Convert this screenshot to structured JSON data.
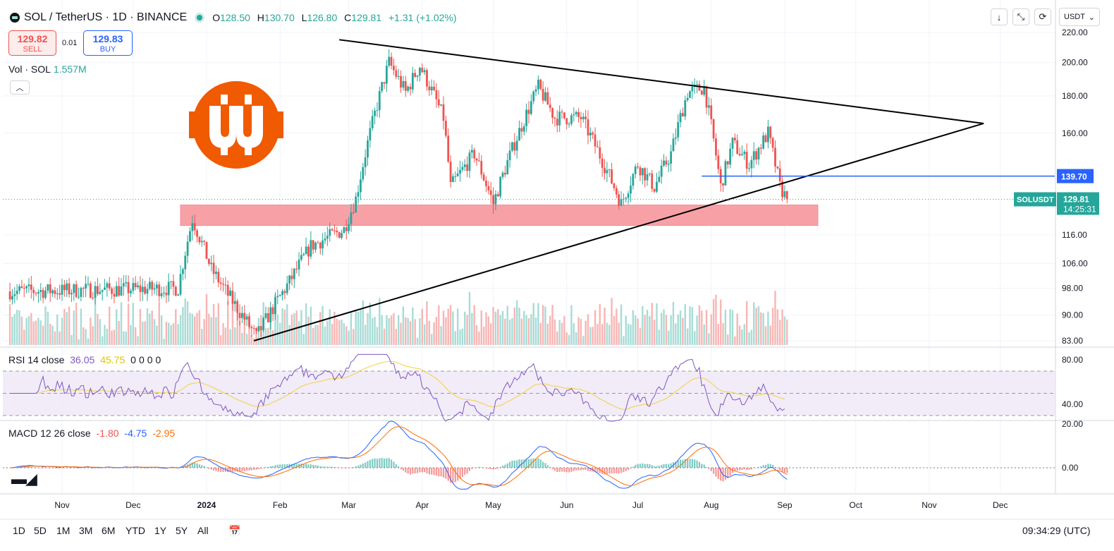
{
  "header": {
    "title": "SOL / TetherUS · 1D · BINANCE",
    "o_key": "O",
    "o": "128.50",
    "h_key": "H",
    "h": "130.70",
    "l_key": "L",
    "l": "126.80",
    "c_key": "C",
    "c": "129.81",
    "change": "+1.31 (+1.02%)"
  },
  "trade": {
    "sell_price": "129.82",
    "sell_label": "SELL",
    "spread": "0.01",
    "buy_price": "129.83",
    "buy_label": "BUY"
  },
  "volume": {
    "label": "Vol · SOL",
    "value": "1.557M"
  },
  "currency": "USDT",
  "rsi": {
    "label": "RSI 14 close",
    "v1": "36.05",
    "v2": "45.75",
    "z": [
      "0",
      "0",
      "0",
      "0"
    ]
  },
  "macd": {
    "label": "MACD 12 26 close",
    "v1": "-1.80",
    "v2": "-4.75",
    "v3": "-2.95"
  },
  "ranges": [
    "1D",
    "5D",
    "1M",
    "3M",
    "6M",
    "YTD",
    "1Y",
    "5Y",
    "All"
  ],
  "clock": "09:34:29 (UTC)",
  "colors": {
    "up": "#26a69a",
    "down": "#ef5350",
    "zone": "#f7a1a7",
    "level": "#2962ff",
    "rsi": "#7e57c2",
    "signal": "#f4d03f",
    "macd": "#2962ff",
    "macd_signal": "#ff6d00"
  },
  "chart_data": {
    "type": "candlestick",
    "symbol_tag": "SOLUSDT",
    "last_price": "129.81",
    "countdown": "14:25:31",
    "level_label": "139.70",
    "level": 139.7,
    "support_zone": [
      119.5,
      127.5
    ],
    "y_ticks": [
      "220.00",
      "200.00",
      "180.00",
      "160.00",
      "139.70",
      "129.81",
      "116.00",
      "106.00",
      "98.00",
      "90.00",
      "83.00"
    ],
    "x_ticks": [
      "Nov",
      "Dec",
      "2024",
      "Feb",
      "Mar",
      "Apr",
      "May",
      "Jun",
      "Jul",
      "Aug",
      "Sep",
      "Oct",
      "Nov",
      "Dec"
    ],
    "rsi_ticks": [
      "80.00",
      "40.00"
    ],
    "macd_ticks": [
      "20.00",
      "0.00"
    ],
    "trendlines": [
      {
        "from": [
          "2024-02-26",
          215
        ],
        "to": [
          "2024-11-24",
          165
        ]
      },
      {
        "from": [
          "2024-01-21",
          83
        ],
        "to": [
          "2024-11-24",
          165
        ]
      }
    ],
    "path": [
      [
        "2023-10-10",
        97
      ],
      [
        "2023-12-20",
        98
      ],
      [
        "2023-12-26",
        122
      ],
      [
        "2024-01-03",
        104
      ],
      [
        "2024-01-10",
        96
      ],
      [
        "2024-01-22",
        84
      ],
      [
        "2024-02-05",
        100
      ],
      [
        "2024-02-14",
        112
      ],
      [
        "2024-02-28",
        118
      ],
      [
        "2024-03-04",
        130
      ],
      [
        "2024-03-18",
        200
      ],
      [
        "2024-03-25",
        182
      ],
      [
        "2024-03-31",
        198
      ],
      [
        "2024-04-10",
        168
      ],
      [
        "2024-04-13",
        135
      ],
      [
        "2024-04-23",
        150
      ],
      [
        "2024-05-01",
        128
      ],
      [
        "2024-05-20",
        185
      ],
      [
        "2024-05-27",
        168
      ],
      [
        "2024-06-07",
        168
      ],
      [
        "2024-06-24",
        128
      ],
      [
        "2024-07-01",
        145
      ],
      [
        "2024-07-08",
        135
      ],
      [
        "2024-07-15",
        150
      ],
      [
        "2024-07-22",
        182
      ],
      [
        "2024-07-29",
        185
      ],
      [
        "2024-08-05",
        135
      ],
      [
        "2024-08-10",
        155
      ],
      [
        "2024-08-17",
        145
      ],
      [
        "2024-08-25",
        160
      ],
      [
        "2024-08-30",
        135
      ],
      [
        "2024-09-02",
        129.81
      ]
    ]
  }
}
